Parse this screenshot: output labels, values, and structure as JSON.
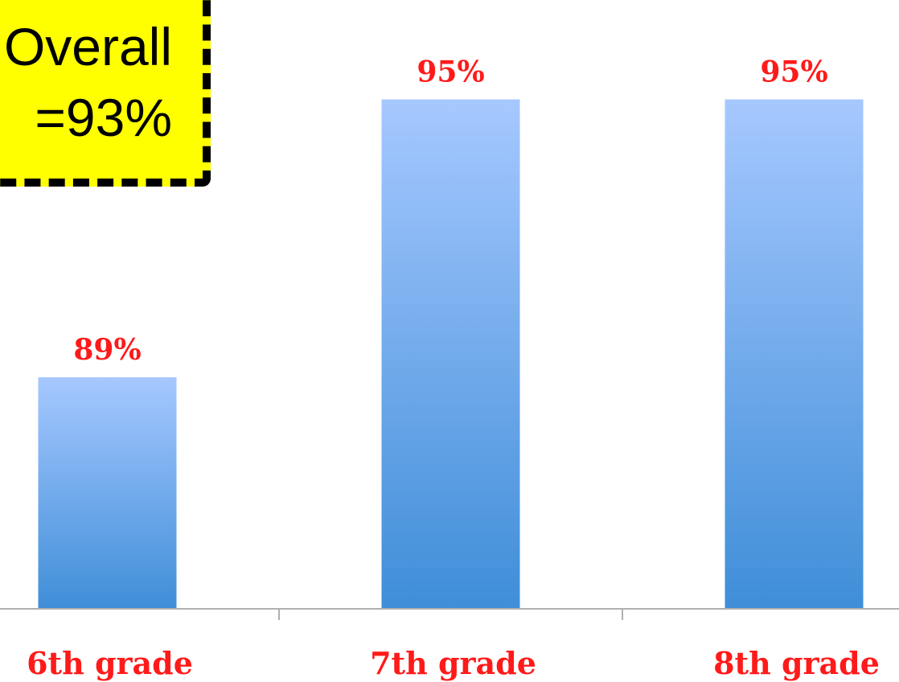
{
  "chart_data": {
    "type": "bar",
    "categories": [
      "6th grade",
      "7th grade",
      "8th grade"
    ],
    "values": [
      89,
      95,
      95
    ],
    "value_labels": [
      "89%",
      "95%",
      "95%"
    ],
    "title": "",
    "xlabel": "",
    "ylabel": "",
    "ylim": [
      84,
      96
    ],
    "grid": false,
    "legend": "none"
  },
  "callout": {
    "line1": "Overall",
    "line2": "=93%"
  },
  "colors": {
    "bar_top": "#a6c8ff",
    "bar_bottom": "#3f8ed8",
    "label_red": "#ff1a1a",
    "axis": "#b0b0b0",
    "callout_bg": "#ffff00"
  }
}
